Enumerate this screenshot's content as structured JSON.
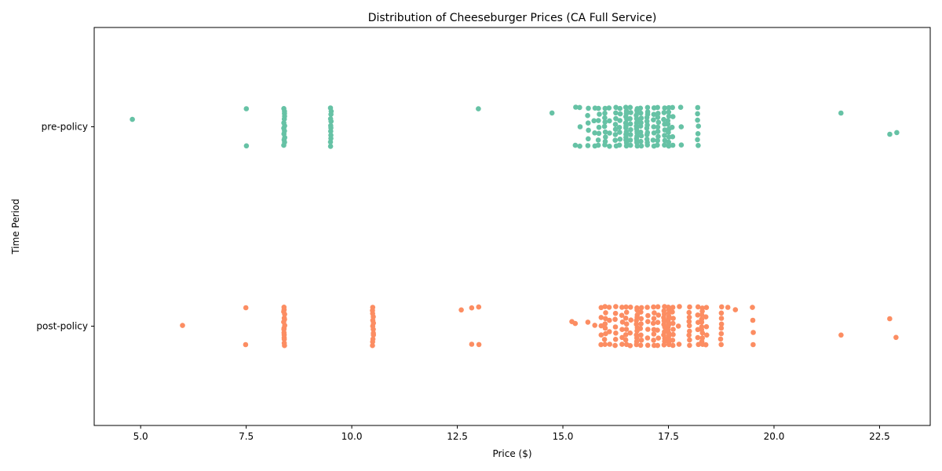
{
  "chart_data": {
    "type": "scatter",
    "subtype": "strip",
    "title": "Distribution of Cheeseburger Prices (CA Full Service)",
    "xlabel": "Price ($)",
    "ylabel": "Time Period",
    "xlim": [
      3.9,
      23.7
    ],
    "xticks": [
      5.0,
      7.5,
      10.0,
      12.5,
      15.0,
      17.5,
      20.0,
      22.5
    ],
    "xtick_labels": [
      "5.0",
      "7.5",
      "10.0",
      "12.5",
      "15.0",
      "17.5",
      "20.0",
      "22.5"
    ],
    "categories": [
      "pre-policy",
      "post-policy"
    ],
    "grid": false,
    "legend": "none",
    "series": [
      {
        "category": "pre-policy",
        "color": "#66c2a5",
        "clusters": [
          {
            "x": 4.8,
            "count": 1
          },
          {
            "x": 7.5,
            "count": 2
          },
          {
            "x": 8.4,
            "count": 14
          },
          {
            "x": 9.5,
            "count": 12
          },
          {
            "x": 13.0,
            "count": 1
          },
          {
            "x": 14.75,
            "count": 1
          },
          {
            "x": 15.3,
            "count": 2
          },
          {
            "x": 15.4,
            "count": 3
          },
          {
            "x": 15.6,
            "count": 6
          },
          {
            "x": 15.75,
            "count": 4
          },
          {
            "x": 15.85,
            "count": 7
          },
          {
            "x": 16.0,
            "count": 9
          },
          {
            "x": 16.1,
            "count": 4
          },
          {
            "x": 16.25,
            "count": 8
          },
          {
            "x": 16.35,
            "count": 7
          },
          {
            "x": 16.5,
            "count": 14
          },
          {
            "x": 16.6,
            "count": 8
          },
          {
            "x": 16.75,
            "count": 16
          },
          {
            "x": 16.85,
            "count": 9
          },
          {
            "x": 17.0,
            "count": 12
          },
          {
            "x": 17.15,
            "count": 7
          },
          {
            "x": 17.25,
            "count": 9
          },
          {
            "x": 17.4,
            "count": 8
          },
          {
            "x": 17.5,
            "count": 10
          },
          {
            "x": 17.6,
            "count": 5
          },
          {
            "x": 17.8,
            "count": 3
          },
          {
            "x": 18.2,
            "count": 7
          },
          {
            "x": 21.6,
            "count": 1
          },
          {
            "x": 22.75,
            "count": 1
          },
          {
            "x": 22.9,
            "count": 1
          }
        ]
      },
      {
        "category": "post-policy",
        "color": "#fc8d62",
        "clusters": [
          {
            "x": 6.0,
            "count": 1
          },
          {
            "x": 7.5,
            "count": 2
          },
          {
            "x": 8.4,
            "count": 16
          },
          {
            "x": 10.5,
            "count": 13
          },
          {
            "x": 12.6,
            "count": 1
          },
          {
            "x": 12.85,
            "count": 2
          },
          {
            "x": 13.0,
            "count": 2
          },
          {
            "x": 15.2,
            "count": 1
          },
          {
            "x": 15.3,
            "count": 1
          },
          {
            "x": 15.6,
            "count": 1
          },
          {
            "x": 15.75,
            "count": 1
          },
          {
            "x": 15.9,
            "count": 5
          },
          {
            "x": 16.0,
            "count": 8
          },
          {
            "x": 16.1,
            "count": 4
          },
          {
            "x": 16.25,
            "count": 7
          },
          {
            "x": 16.4,
            "count": 6
          },
          {
            "x": 16.5,
            "count": 8
          },
          {
            "x": 16.6,
            "count": 4
          },
          {
            "x": 16.75,
            "count": 12
          },
          {
            "x": 16.85,
            "count": 8
          },
          {
            "x": 17.0,
            "count": 6
          },
          {
            "x": 17.15,
            "count": 8
          },
          {
            "x": 17.25,
            "count": 6
          },
          {
            "x": 17.4,
            "count": 12
          },
          {
            "x": 17.5,
            "count": 14
          },
          {
            "x": 17.6,
            "count": 8
          },
          {
            "x": 17.75,
            "count": 3
          },
          {
            "x": 18.0,
            "count": 9
          },
          {
            "x": 18.2,
            "count": 6
          },
          {
            "x": 18.3,
            "count": 11
          },
          {
            "x": 18.4,
            "count": 5
          },
          {
            "x": 18.75,
            "count": 8
          },
          {
            "x": 18.9,
            "count": 1
          },
          {
            "x": 19.1,
            "count": 1
          },
          {
            "x": 19.5,
            "count": 4
          },
          {
            "x": 21.6,
            "count": 1
          },
          {
            "x": 22.75,
            "count": 1
          },
          {
            "x": 22.9,
            "count": 1
          }
        ]
      }
    ]
  }
}
